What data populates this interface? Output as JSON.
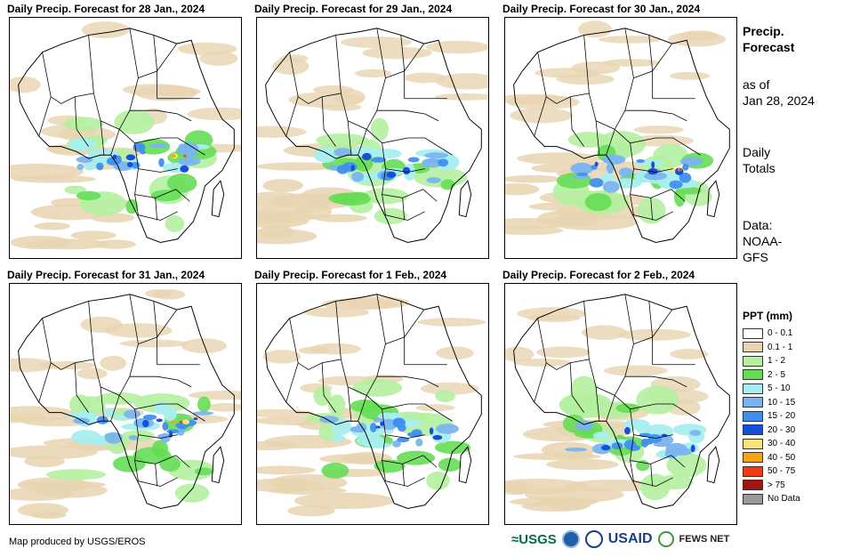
{
  "panels": [
    {
      "title": "Daily Precip. Forecast for 28 Jan., 2024"
    },
    {
      "title": "Daily Precip. Forecast for 29 Jan., 2024"
    },
    {
      "title": "Daily Precip. Forecast for 30 Jan., 2024"
    },
    {
      "title": "Daily Precip. Forecast for 31 Jan., 2024"
    },
    {
      "title": "Daily Precip. Forecast for 1 Feb., 2024"
    },
    {
      "title": "Daily Precip. Forecast for 2 Feb., 2024"
    }
  ],
  "sidebar": {
    "title_line1": "Precip.",
    "title_line2": "Forecast",
    "asof_line1": "as of",
    "asof_line2": "Jan 28, 2024",
    "totals_line1": "Daily",
    "totals_line2": "Totals",
    "data_line1": "Data:",
    "data_line2": "NOAA-",
    "data_line3": "GFS"
  },
  "legend": {
    "title": "PPT (mm)",
    "items": [
      {
        "label": "0 - 0.1",
        "color": "#ffffff"
      },
      {
        "label": "0.1 - 1",
        "color": "#e8d5b0"
      },
      {
        "label": "1 - 2",
        "color": "#b4f0a0"
      },
      {
        "label": "2 - 5",
        "color": "#66dd55"
      },
      {
        "label": "5 - 10",
        "color": "#a8eef0"
      },
      {
        "label": "10 - 15",
        "color": "#7ab4f0"
      },
      {
        "label": "15 - 20",
        "color": "#3f8ff0"
      },
      {
        "label": "20 - 30",
        "color": "#1450dc"
      },
      {
        "label": "30 - 40",
        "color": "#f8e27a"
      },
      {
        "label": "40 - 50",
        "color": "#f5a214"
      },
      {
        "label": "50 - 75",
        "color": "#f03c14"
      },
      {
        "label": "> 75",
        "color": "#a01414"
      },
      {
        "label": "No Data",
        "color": "#999999"
      }
    ]
  },
  "footer": {
    "credit": "Map produced by USGS/EROS",
    "logo_usgs": "≈USGS",
    "logo_usaid": "USAID",
    "logo_fews": "FEWS NET"
  }
}
